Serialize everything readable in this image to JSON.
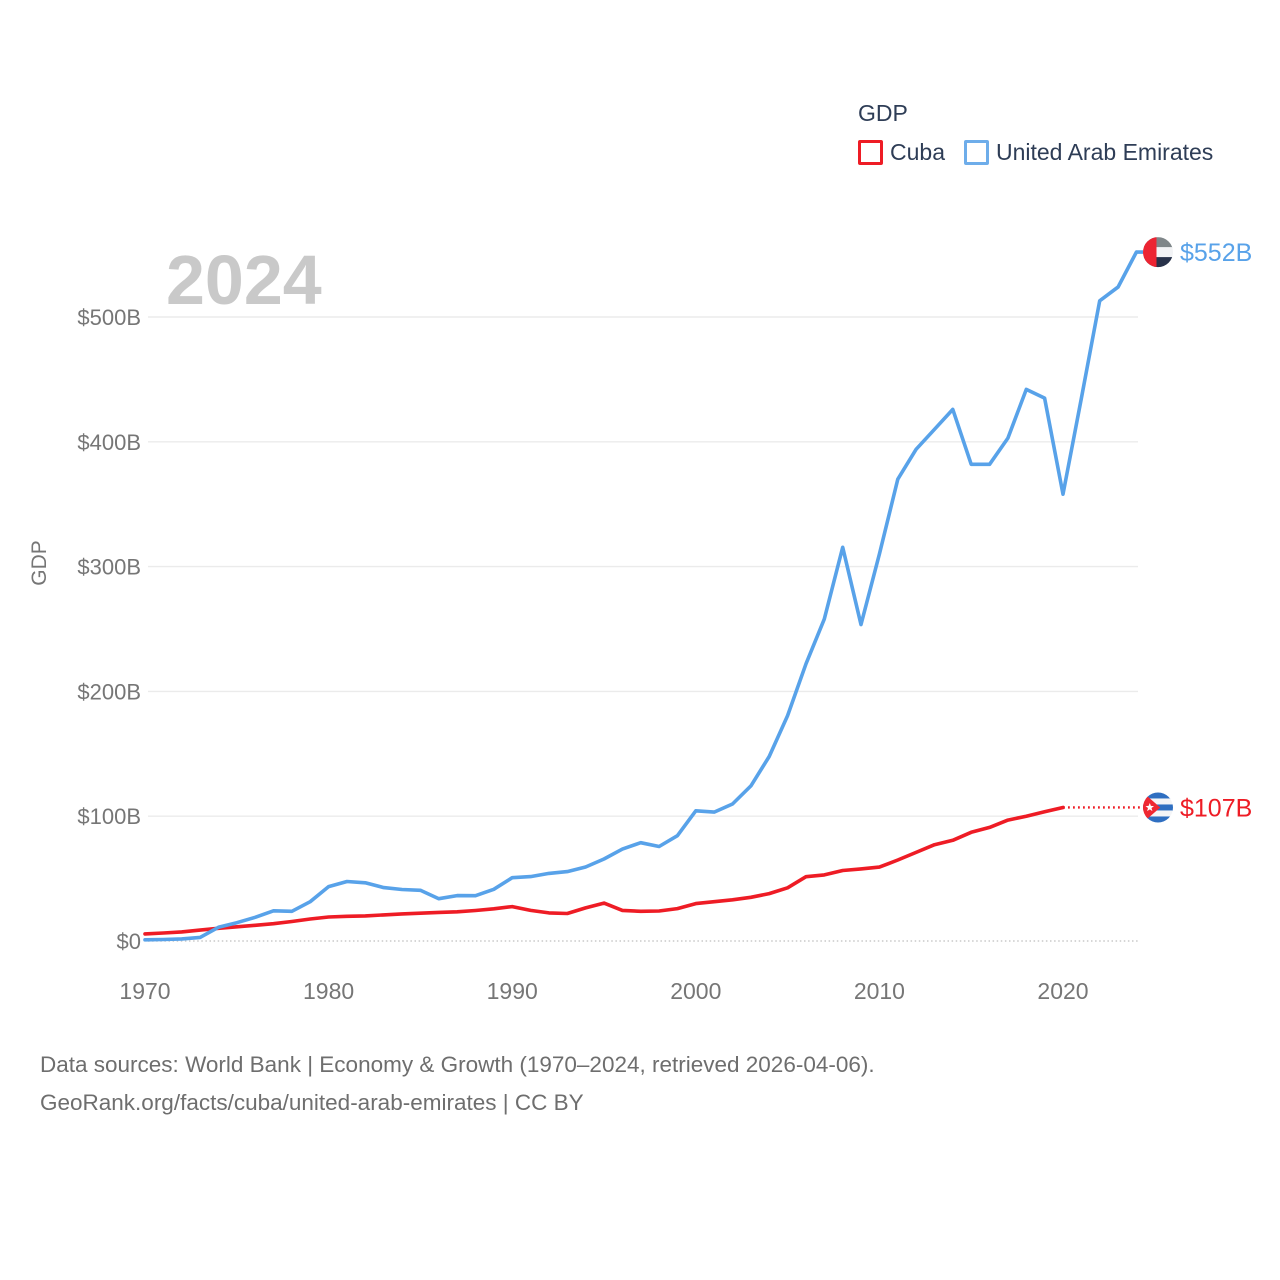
{
  "chart_data": {
    "type": "line",
    "title": "GDP",
    "ylabel": "GDP",
    "xlabel": "",
    "watermark": "2024",
    "grid": true,
    "legend_position": "top-right",
    "ylim": [
      0,
      560
    ],
    "x_range": [
      1970,
      2024
    ],
    "x_ticks": [
      1970,
      1980,
      1990,
      2000,
      2010,
      2020
    ],
    "y_ticks": [
      {
        "value": 0,
        "label": "$0"
      },
      {
        "value": 100,
        "label": "$100B"
      },
      {
        "value": 200,
        "label": "$200B"
      },
      {
        "value": 300,
        "label": "$300B"
      },
      {
        "value": 400,
        "label": "$400B"
      },
      {
        "value": 500,
        "label": "$500B"
      }
    ],
    "years": [
      1970,
      1971,
      1972,
      1973,
      1974,
      1975,
      1976,
      1977,
      1978,
      1979,
      1980,
      1981,
      1982,
      1983,
      1984,
      1985,
      1986,
      1987,
      1988,
      1989,
      1990,
      1991,
      1992,
      1993,
      1994,
      1995,
      1996,
      1997,
      1998,
      1999,
      2000,
      2001,
      2002,
      2003,
      2004,
      2005,
      2006,
      2007,
      2008,
      2009,
      2010,
      2011,
      2012,
      2013,
      2014,
      2015,
      2016,
      2017,
      2018,
      2019,
      2020,
      2021,
      2022,
      2023,
      2024
    ],
    "series": [
      {
        "id": "cuba",
        "name": "Cuba",
        "color": "#ee1c25",
        "end_label": "$107B",
        "flag": "cuba",
        "solid_until_year": 2020,
        "dotted_after": true,
        "values": [
          5.7,
          6.4,
          7.3,
          8.7,
          10.2,
          11.4,
          12.6,
          13.9,
          15.6,
          17.6,
          19.2,
          19.8,
          20.1,
          20.9,
          21.7,
          22.3,
          22.9,
          23.4,
          24.4,
          25.8,
          27.6,
          24.5,
          22.5,
          22.0,
          26.5,
          30.4,
          24.5,
          23.8,
          24.0,
          26.0,
          30.0,
          31.5,
          33.0,
          35.0,
          38.0,
          42.6,
          51.5,
          53.0,
          56.5,
          57.8,
          59.2,
          64.9,
          71.0,
          77.2,
          80.7,
          87.1,
          91.0,
          96.9,
          100.0,
          103.6,
          107.0,
          107.0,
          107.0,
          107.0,
          107.0
        ]
      },
      {
        "id": "uae",
        "name": "United Arab Emirates",
        "color": "#58a2e9",
        "end_label": "$552B",
        "flag": "uae",
        "solid_until_year": 2024,
        "dotted_after": false,
        "values": [
          1.0,
          1.2,
          1.7,
          2.9,
          11.0,
          14.7,
          19.0,
          24.2,
          23.8,
          31.5,
          43.6,
          47.7,
          46.6,
          42.8,
          41.3,
          40.6,
          33.9,
          36.4,
          36.3,
          41.4,
          50.7,
          51.6,
          54.2,
          55.6,
          59.3,
          65.7,
          73.6,
          78.8,
          75.7,
          84.4,
          104.3,
          103.3,
          109.8,
          124.3,
          147.8,
          180.6,
          222.1,
          257.9,
          315.5,
          253.5,
          310.0,
          370.0,
          394.0,
          410.0,
          426.0,
          382.0,
          382.0,
          403.0,
          442.0,
          435.0,
          358.0,
          435.0,
          513.0,
          524.0,
          552.0
        ]
      }
    ]
  },
  "legend": {
    "title": "GDP",
    "items": [
      {
        "label": "Cuba",
        "color": "#ee1c25"
      },
      {
        "label": "United Arab Emirates",
        "color": "#6eadea"
      }
    ]
  },
  "annotations": {
    "uae_end_value": "$552B",
    "cuba_end_value": "$107B",
    "year_watermark": "2024"
  },
  "footer": {
    "line1": "Data sources: World Bank | Economy & Growth (1970–2024, retrieved 2026-04-06).",
    "line2": "GeoRank.org/facts/cuba/united-arab-emirates | CC BY"
  }
}
